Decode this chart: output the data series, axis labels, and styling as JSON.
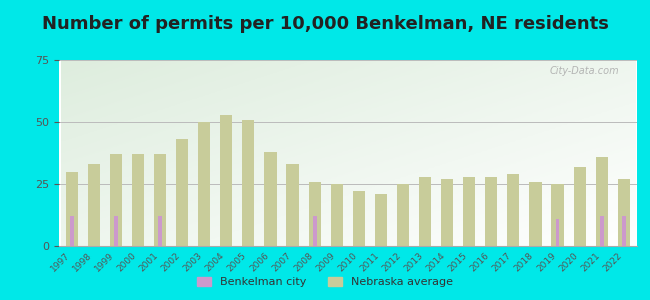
{
  "title": "Number of permits per 10,000 Benkelman, NE residents",
  "years": [
    1997,
    1998,
    1999,
    2000,
    2001,
    2002,
    2003,
    2004,
    2005,
    2006,
    2007,
    2008,
    2009,
    2010,
    2011,
    2012,
    2013,
    2014,
    2015,
    2016,
    2017,
    2018,
    2019,
    2020,
    2021,
    2022
  ],
  "nebraska_avg": [
    30,
    33,
    37,
    37,
    37,
    43,
    50,
    53,
    51,
    38,
    33,
    26,
    25,
    22,
    21,
    25,
    28,
    27,
    28,
    28,
    29,
    26,
    25,
    32,
    36,
    27
  ],
  "benkelman_city": [
    12,
    0,
    12,
    0,
    12,
    0,
    0,
    0,
    0,
    0,
    0,
    12,
    0,
    0,
    0,
    0,
    0,
    0,
    0,
    0,
    0,
    0,
    11,
    0,
    12,
    12
  ],
  "nebraska_color": "#c8cc9a",
  "benkelman_color": "#cc99cc",
  "background_color": "#00e8e8",
  "plot_bg_color": "#deeede",
  "title_fontsize": 13,
  "ylim": [
    0,
    75
  ],
  "yticks": [
    0,
    25,
    50,
    75
  ],
  "legend_labels": [
    "Benkelman city",
    "Nebraska average"
  ],
  "watermark": "City-Data.com"
}
